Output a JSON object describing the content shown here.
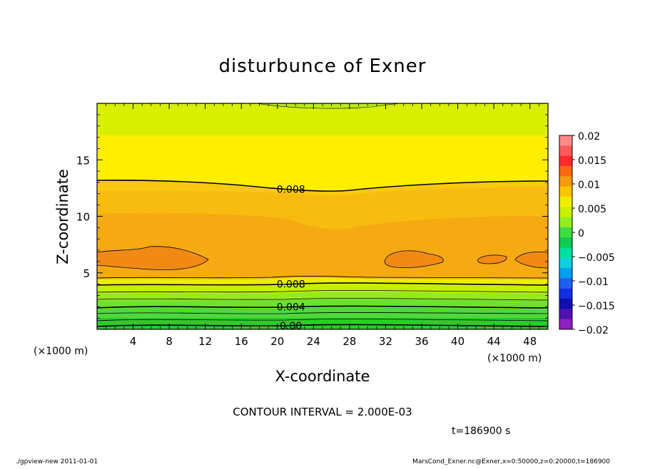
{
  "chart_data": {
    "type": "heatmap",
    "title": "disturbunce of Exner",
    "xlabel": "X-coordinate",
    "ylabel": "Z-coordinate",
    "x_unit": "(×1000 m)",
    "z_unit": "(×1000 m)",
    "xlim": [
      0,
      50
    ],
    "ylim": [
      0,
      20
    ],
    "x_ticks": [
      "4",
      "8",
      "12",
      "16",
      "20",
      "24",
      "28",
      "32",
      "36",
      "40",
      "44",
      "48"
    ],
    "x_tick_values": [
      4,
      8,
      12,
      16,
      20,
      24,
      28,
      32,
      36,
      40,
      44,
      48
    ],
    "y_ticks": [
      "5",
      "10",
      "15"
    ],
    "y_tick_values": [
      5,
      10,
      15
    ],
    "colorbar": {
      "range": [
        -0.02,
        0.02
      ],
      "tick_labels": [
        "0.02",
        "0.015",
        "0.01",
        "0.005",
        "0",
        "−0.005",
        "−0.01",
        "−0.015",
        "−0.02"
      ],
      "tick_values": [
        0.02,
        0.015,
        0.01,
        0.005,
        0,
        -0.005,
        -0.01,
        -0.015,
        -0.02
      ],
      "colors": [
        "#FF8A8A",
        "#FF5A5A",
        "#FF2A2A",
        "#FF6A10",
        "#F79A10",
        "#FFC400",
        "#EEEE00",
        "#C8F000",
        "#90EE20",
        "#40DD40",
        "#10CC50",
        "#00E0A0",
        "#10D0E0",
        "#00A0F0",
        "#2060F0",
        "#1030E0",
        "#1010B0",
        "#5010B0",
        "#9020C0"
      ]
    },
    "contour_labels": [
      {
        "text": "0.008",
        "x": 21.5,
        "z": 12.4
      },
      {
        "text": "0.008",
        "x": 21.5,
        "z": 4.0
      },
      {
        "text": "0.004",
        "x": 21.5,
        "z": 2.0
      },
      {
        "text": "0.00",
        "x": 21.5,
        "z": 0.3
      }
    ],
    "contour_interval_text": "CONTOUR INTERVAL = 2.000E-03",
    "time_text": "t=186900 s"
  },
  "footer": {
    "left": "./gpview-new  2011-01-01",
    "right": "MarsCond_Exner.nc@Exner,x=0:50000,z=0:20000,t=186900"
  }
}
